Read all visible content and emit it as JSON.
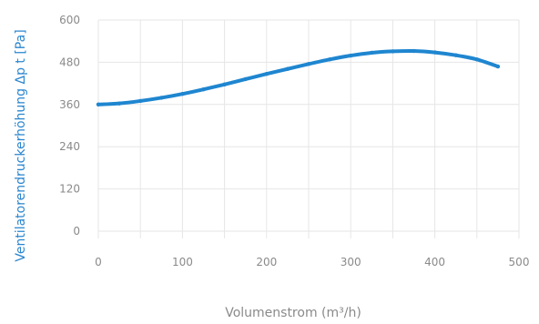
{
  "chart_data": {
    "type": "line",
    "xlabel": "Volumenstrom (m³/h)",
    "ylabel": "Ventilatorendruckerhöhung Δp t [Pa]",
    "xlim": [
      0,
      500
    ],
    "ylim": [
      0,
      600
    ],
    "x_ticks": [
      "0",
      "100",
      "200",
      "300",
      "400",
      "500"
    ],
    "y_ticks": [
      "0",
      "120",
      "240",
      "360",
      "480",
      "600"
    ],
    "grid": true,
    "legend": "none",
    "series_color": "#1f86d0",
    "series": [
      {
        "x": [
          0,
          25,
          50,
          75,
          100,
          125,
          150,
          175,
          200,
          225,
          250,
          275,
          300,
          325,
          350,
          375,
          400,
          425,
          450,
          475
        ],
        "values": [
          360,
          363,
          370,
          379,
          390,
          403,
          417,
          432,
          447,
          461,
          475,
          488,
          499,
          507,
          511,
          512,
          508,
          500,
          488,
          468
        ]
      }
    ]
  }
}
